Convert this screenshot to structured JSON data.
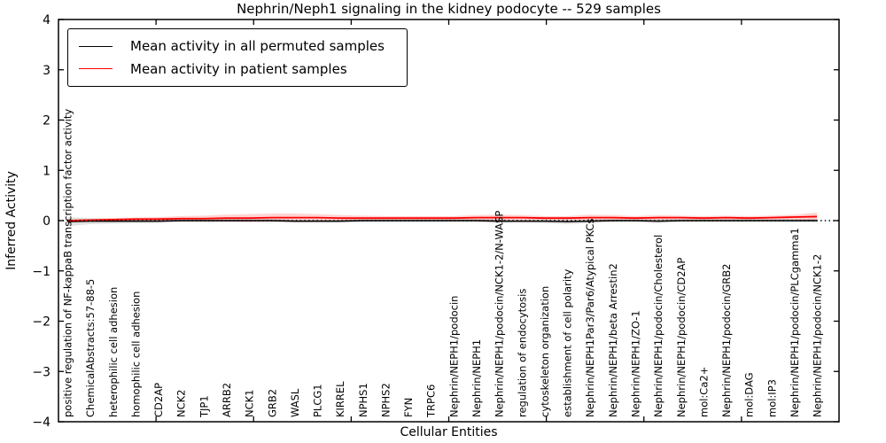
{
  "chart_data": {
    "type": "line",
    "title": "Nephrin/Neph1 signaling in the kidney podocyte -- 529 samples",
    "xlabel": "Cellular Entities",
    "ylabel": "Inferred Activity",
    "ylim": [
      -4,
      4
    ],
    "yticks": [
      4,
      3,
      2,
      1,
      0,
      -1,
      -2,
      -3,
      -4
    ],
    "ytick_labels": [
      "4",
      "3",
      "2",
      "1",
      "0",
      "−1",
      "−2",
      "−3",
      "−4"
    ],
    "grid": false,
    "zero_line_style": "dotted black",
    "legend_position": "upper left",
    "categories": [
      "positive regulation of NF-kappaB transcription factor activity",
      "ChemicalAbstracts:57-88-5",
      "heterophilic cell adhesion",
      "homophilic cell adhesion",
      "CD2AP",
      "NCK2",
      "TJP1",
      "ARRB2",
      "NCK1",
      "GRB2",
      "WASL",
      "PLCG1",
      "KIRREL",
      "NPHS1",
      "NPHS2",
      "FYN",
      "TRPC6",
      "Nephrin/NEPH1/podocin",
      "Nephrin/NEPH1",
      "Nephrin/NEPH1/podocin/NCK1-2/N-WASP",
      "regulation of endocytosis",
      "cytoskeleton organization",
      "establishment of cell polarity",
      "Nephrin/NEPH1Par3/Par6/Atypical PKCs",
      "Nephrin/NEPH1/beta Arrestin2",
      "Nephrin/NEPH1/ZO-1",
      "Nephrin/NEPH1/podocin/Cholesterol",
      "Nephrin/NEPH1/podocin/CD2AP",
      "mol:Ca2+",
      "Nephrin/NEPH1/podocin/GRB2",
      "mol:DAG",
      "mol:IP3",
      "Nephrin/NEPH1/podocin/PLCgamma1",
      "Nephrin/NEPH1/podocin/NCK1-2"
    ],
    "series": [
      {
        "name": "Mean activity in all permuted samples",
        "color": "#000000",
        "style": "solid",
        "band_color": "#aaaaaa",
        "band_opacity": 0.35,
        "values": [
          -0.02,
          -0.01,
          -0.01,
          -0.01,
          -0.01,
          0,
          0,
          0,
          0,
          0,
          -0.01,
          -0.01,
          -0.01,
          0,
          0,
          0,
          0,
          0,
          0,
          -0.01,
          -0.01,
          -0.01,
          -0.02,
          -0.01,
          0,
          0,
          -0.01,
          0,
          0,
          0,
          0,
          0,
          0,
          0
        ],
        "band_halfwidth": [
          0.09,
          0.06,
          0.05,
          0.04,
          0.04,
          0.03,
          0.03,
          0.03,
          0.03,
          0.03,
          0.03,
          0.03,
          0.03,
          0.03,
          0.03,
          0.03,
          0.03,
          0.03,
          0.03,
          0.04,
          0.03,
          0.04,
          0.05,
          0.04,
          0.03,
          0.03,
          0.04,
          0.03,
          0.03,
          0.03,
          0.03,
          0.03,
          0.03,
          0.04
        ]
      },
      {
        "name": "Mean activity in patient samples",
        "color": "#ff0000",
        "style": "solid",
        "band_color": "#ff5555",
        "band_opacity": 0.25,
        "values": [
          0.0,
          0.01,
          0.02,
          0.03,
          0.03,
          0.04,
          0.04,
          0.05,
          0.05,
          0.06,
          0.06,
          0.06,
          0.05,
          0.05,
          0.05,
          0.05,
          0.05,
          0.05,
          0.06,
          0.06,
          0.06,
          0.05,
          0.05,
          0.06,
          0.06,
          0.05,
          0.06,
          0.06,
          0.05,
          0.06,
          0.05,
          0.06,
          0.07,
          0.08
        ],
        "band_halfwidth": [
          0.02,
          0.02,
          0.03,
          0.03,
          0.04,
          0.05,
          0.06,
          0.07,
          0.08,
          0.08,
          0.08,
          0.07,
          0.06,
          0.05,
          0.04,
          0.04,
          0.04,
          0.04,
          0.05,
          0.06,
          0.05,
          0.04,
          0.04,
          0.06,
          0.05,
          0.04,
          0.05,
          0.04,
          0.04,
          0.04,
          0.04,
          0.04,
          0.05,
          0.08
        ]
      }
    ]
  }
}
